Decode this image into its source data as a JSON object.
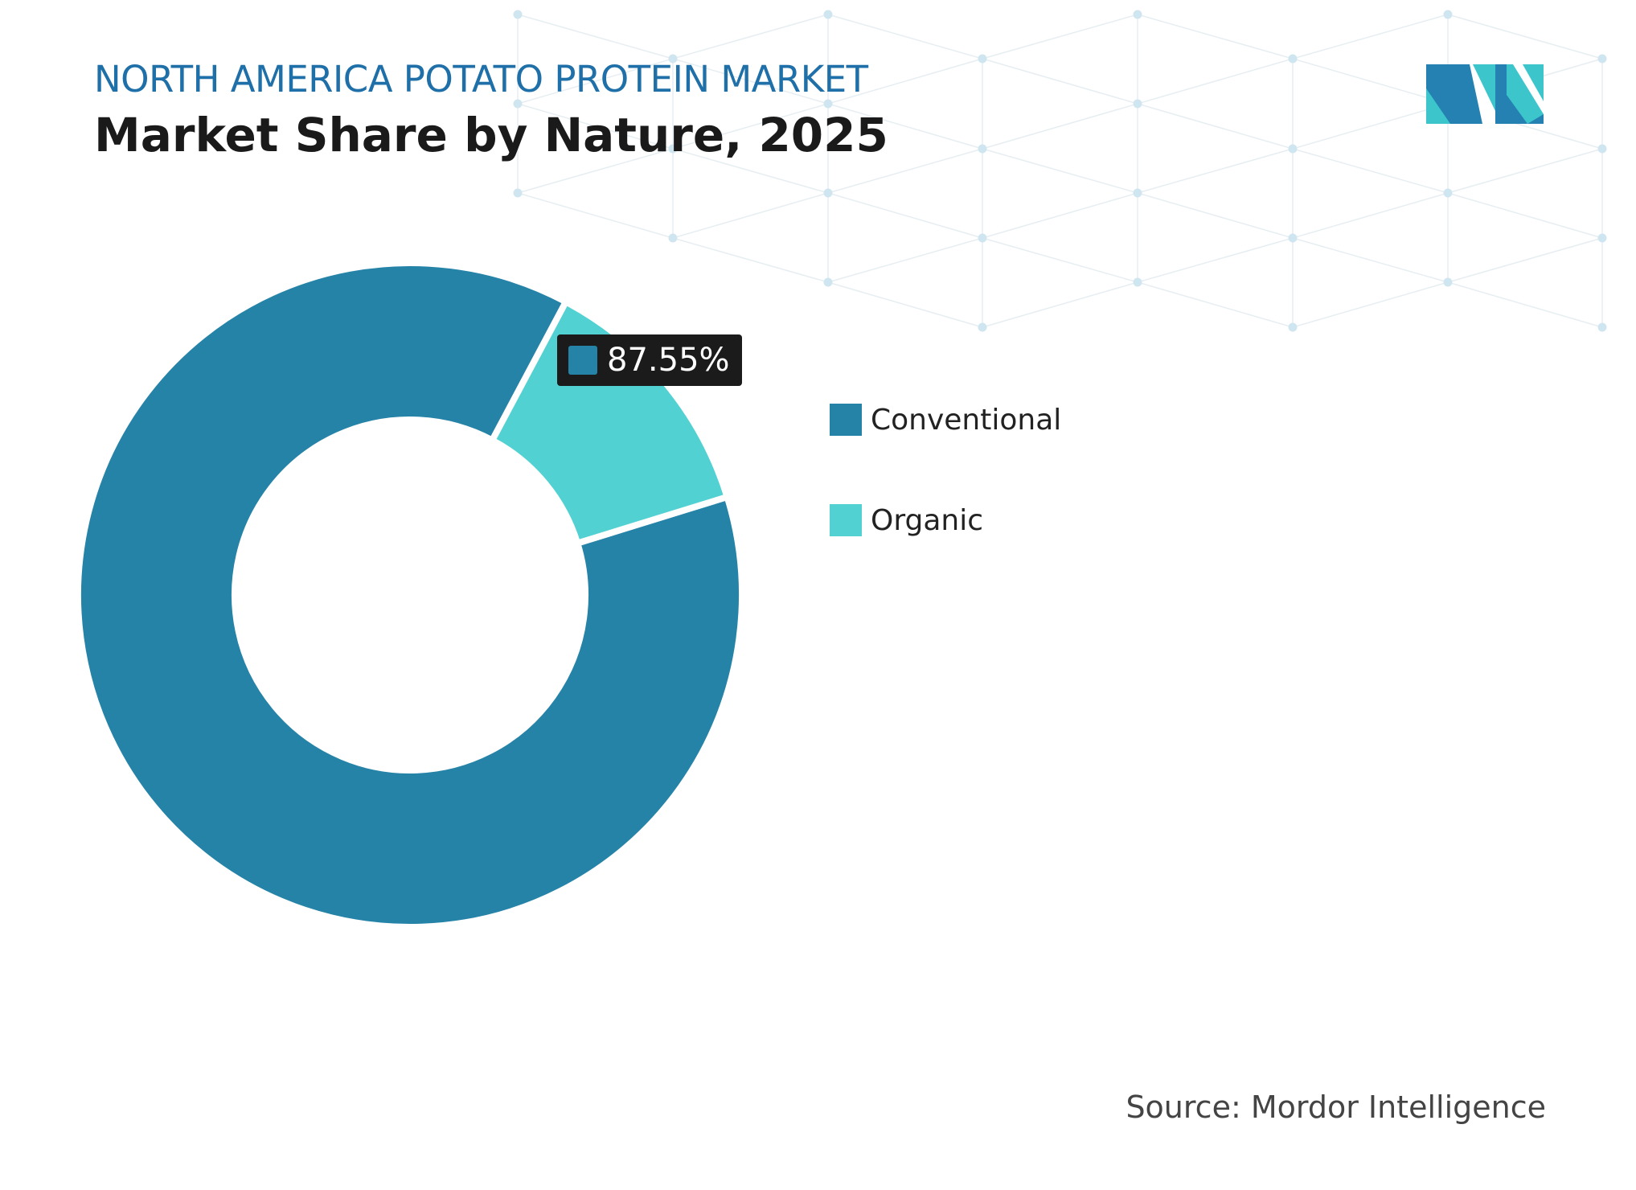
{
  "header": {
    "supertitle": "NORTH AMERICA POTATO PROTEIN MARKET",
    "title": "Market Share by Nature, 2025"
  },
  "logo": {
    "name": "mordor-intelligence-logo",
    "colors": [
      "#1f7fb0",
      "#3cc6cc"
    ]
  },
  "chart_data": {
    "type": "pie",
    "variant": "donut",
    "title": "Market Share by Nature, 2025",
    "categories": [
      "Conventional",
      "Organic"
    ],
    "values": [
      87.55,
      12.45
    ],
    "colors": [
      "#2683a8",
      "#52d1d3"
    ],
    "data_labels": [
      {
        "category": "Conventional",
        "text": "87.55%"
      }
    ],
    "legend_position": "right"
  },
  "source": "Source: Mordor Intelligence"
}
